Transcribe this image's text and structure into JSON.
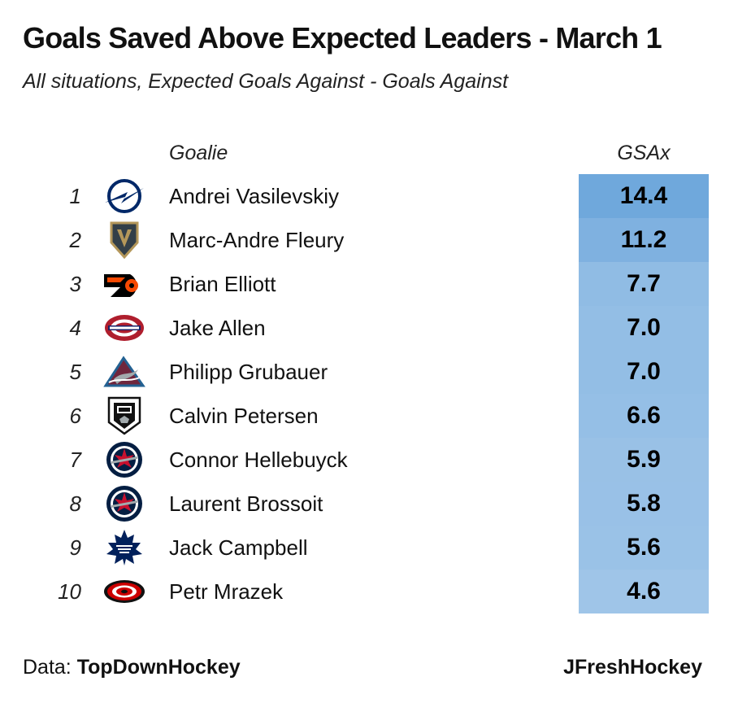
{
  "title": "Goals Saved Above Expected Leaders - March 1",
  "subtitle": "All situations, Expected Goals Against - Goals Against",
  "headers": {
    "goalie": "Goalie",
    "gsax": "GSAx"
  },
  "colors": {
    "cell_max": "#6fa8dc",
    "cell_min": "#9fc5e8"
  },
  "rows": [
    {
      "rank": "1",
      "team_logo": "lightning-logo-icon",
      "goalie": "Andrei Vasilevskiy",
      "gsax": "14.4"
    },
    {
      "rank": "2",
      "team_logo": "golden-knights-logo-icon",
      "goalie": "Marc-Andre Fleury",
      "gsax": "11.2"
    },
    {
      "rank": "3",
      "team_logo": "flyers-logo-icon",
      "goalie": "Brian Elliott",
      "gsax": "7.7"
    },
    {
      "rank": "4",
      "team_logo": "canadiens-logo-icon",
      "goalie": "Jake Allen",
      "gsax": "7.0"
    },
    {
      "rank": "5",
      "team_logo": "avalanche-logo-icon",
      "goalie": "Philipp Grubauer",
      "gsax": "7.0"
    },
    {
      "rank": "6",
      "team_logo": "kings-logo-icon",
      "goalie": "Calvin Petersen",
      "gsax": "6.6"
    },
    {
      "rank": "7",
      "team_logo": "jets-logo-icon",
      "goalie": "Connor Hellebuyck",
      "gsax": "5.9"
    },
    {
      "rank": "8",
      "team_logo": "jets-logo-icon",
      "goalie": "Laurent Brossoit",
      "gsax": "5.8"
    },
    {
      "rank": "9",
      "team_logo": "maple-leafs-logo-icon",
      "goalie": "Jack Campbell",
      "gsax": "5.6"
    },
    {
      "rank": "10",
      "team_logo": "hurricanes-logo-icon",
      "goalie": "Petr Mrazek",
      "gsax": "4.6"
    }
  ],
  "footer": {
    "data_label": "Data: ",
    "data_source": "TopDownHockey",
    "credit": "JFreshHockey"
  }
}
